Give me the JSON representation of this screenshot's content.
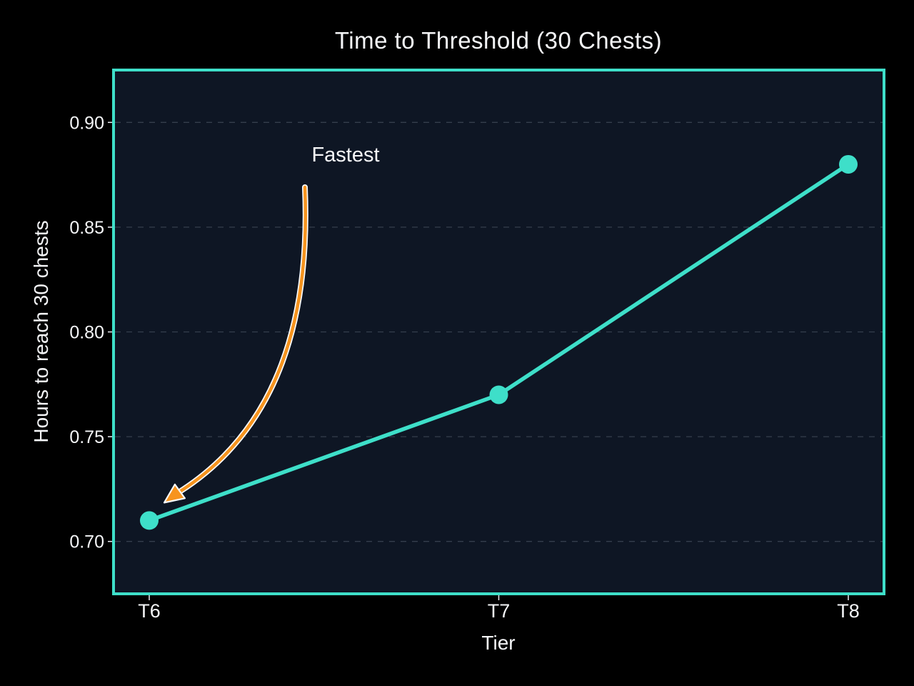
{
  "chart_data": {
    "type": "line",
    "title": "Time to Threshold (30 Chests)",
    "xlabel": "Tier",
    "ylabel": "Hours to reach 30 chests",
    "categories": [
      "T6",
      "T7",
      "T8"
    ],
    "series": [
      {
        "name": "Hours to reach 30 chests",
        "values": [
          0.71,
          0.77,
          0.88
        ]
      }
    ],
    "yticks": [
      0.7,
      0.75,
      0.8,
      0.85,
      0.9
    ],
    "ytick_labels": [
      "0.70",
      "0.75",
      "0.80",
      "0.85",
      "0.90"
    ],
    "ylim": [
      0.675,
      0.925
    ],
    "grid": "horizontal-dashed",
    "legend": "none",
    "annotation": {
      "text": "Fastest",
      "points_to": "T6",
      "arrow_style": "curved"
    },
    "colors": {
      "page_bg": "#000000",
      "plot_bg": "#0E1624",
      "frame": "#3EDFC9",
      "line": "#3EDFC9",
      "marker": "#3EDFC9",
      "grid": "#55606F",
      "tick": "#E8EAF0",
      "text": "#F5F6F8",
      "annotation_arrow": "#F7941E",
      "annotation_outline": "#F8F9FA"
    }
  }
}
